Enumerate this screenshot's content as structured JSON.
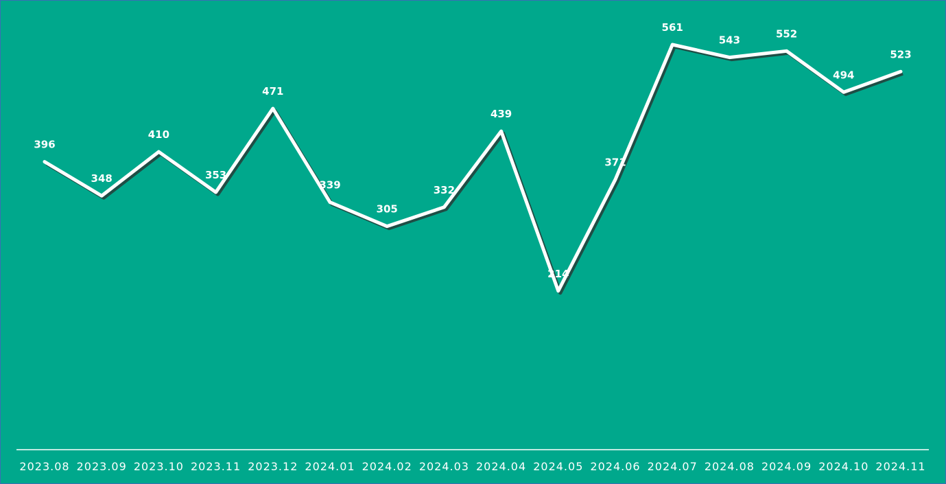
{
  "chart_data": {
    "type": "line",
    "categories": [
      "2023.08",
      "2023.09",
      "2023.10",
      "2023.11",
      "2023.12",
      "2024.01",
      "2024.02",
      "2024.03",
      "2024.04",
      "2024.05",
      "2024.06",
      "2024.07",
      "2024.08",
      "2024.09",
      "2024.10",
      "2024.11"
    ],
    "series": [
      {
        "color": "#ffffff",
        "values": [
          396,
          348,
          410,
          353,
          471,
          339,
          305,
          332,
          439,
          214,
          371,
          561,
          543,
          552,
          494,
          523
        ]
      }
    ],
    "background": "#00a88c"
  }
}
